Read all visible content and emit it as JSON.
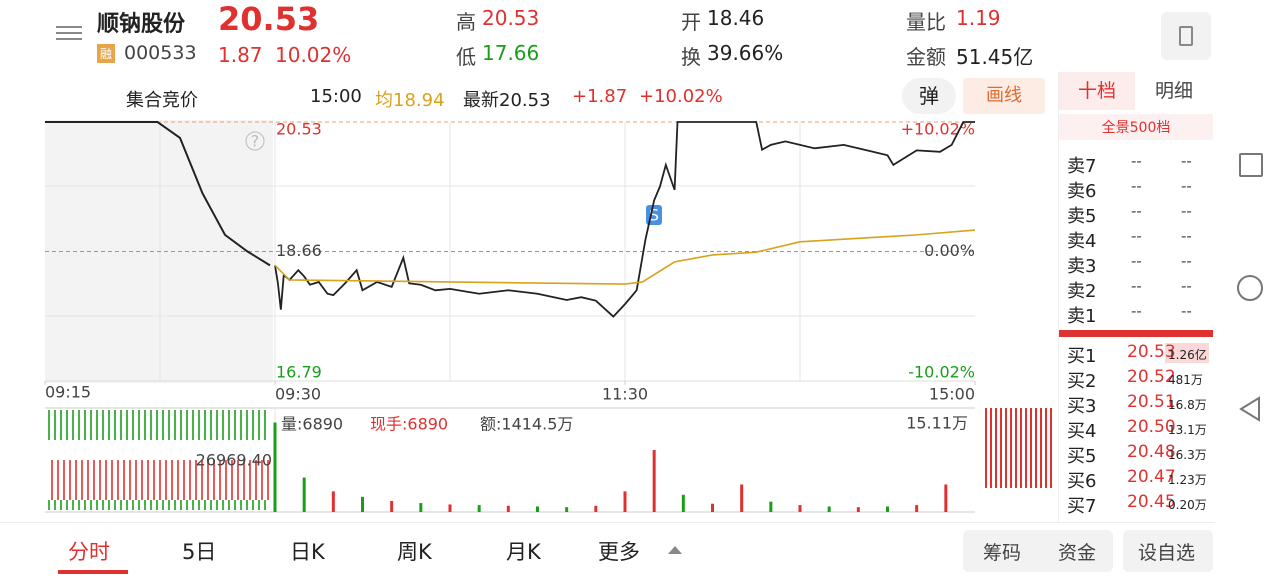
{
  "header": {
    "name": "顺钠股份",
    "price": "20.53",
    "badge": "融",
    "code": "000533",
    "change": "1.87",
    "change_pct": "10.02%",
    "stats": [
      {
        "label": "高",
        "value": "20.53",
        "color": "#e03131"
      },
      {
        "label": "低",
        "value": "17.66",
        "color": "#1a9e1a"
      },
      {
        "label": "开",
        "value": "18.46",
        "color": "#222222"
      },
      {
        "label": "换",
        "value": "39.66%",
        "color": "#222222"
      },
      {
        "label": "量比",
        "value": "1.19",
        "color": "#e03131"
      },
      {
        "label": "金额",
        "value": "51.45亿",
        "color": "#222222"
      }
    ]
  },
  "info_bar": {
    "auction": "集合竞价",
    "time": "15:00",
    "avg": "均18.94",
    "latest": "最新20.53",
    "change": "+1.87",
    "change_pct": "+10.02%",
    "pop_button": "弹",
    "draw_button": "画线"
  },
  "chart_data": {
    "type": "line",
    "ylim": [
      16.79,
      20.53
    ],
    "yticks": [
      16.79,
      18.66,
      20.53
    ],
    "pct_ticks": [
      "-10.02%",
      "0.00%",
      "+10.02%"
    ],
    "xlim": [
      0,
      240
    ],
    "xticks": [
      {
        "value": 0,
        "label": "09:30"
      },
      {
        "value": 120,
        "label": "11:30"
      },
      {
        "value": 240,
        "label": "15:00"
      }
    ],
    "series": [
      {
        "color": "#222222",
        "x": [
          0,
          1,
          2,
          3,
          5,
          8,
          10,
          12,
          15,
          18,
          20,
          24,
          28,
          30,
          35,
          40,
          44,
          46,
          50,
          55,
          60,
          70,
          80,
          90,
          100,
          105,
          110,
          116,
          120,
          124,
          127,
          130,
          132,
          134,
          137,
          138,
          150,
          165,
          167,
          170,
          175,
          185,
          195,
          205,
          210,
          212,
          220,
          228,
          232,
          236,
          240
        ],
        "values": [
          18.46,
          18.2,
          17.82,
          18.32,
          18.25,
          18.39,
          18.3,
          18.18,
          18.22,
          18.05,
          18.03,
          18.2,
          18.39,
          18.1,
          18.22,
          18.15,
          18.57,
          18.2,
          18.18,
          18.1,
          18.12,
          18.05,
          18.1,
          18.05,
          17.96,
          18.0,
          17.95,
          17.72,
          17.9,
          18.1,
          18.83,
          19.4,
          19.6,
          19.91,
          19.55,
          20.53,
          20.53,
          20.53,
          20.13,
          20.2,
          20.25,
          20.15,
          20.2,
          20.1,
          20.05,
          19.91,
          20.12,
          20.1,
          20.2,
          20.53,
          20.53
        ]
      },
      {
        "color": "#d9a21b",
        "x": [
          0,
          5,
          60,
          120,
          126,
          137,
          150,
          165,
          180,
          220,
          240
        ],
        "values": [
          18.46,
          18.25,
          18.22,
          18.19,
          18.22,
          18.51,
          18.61,
          18.65,
          18.8,
          18.9,
          18.97
        ]
      }
    ],
    "auction": {
      "xlim": [
        0,
        10
      ],
      "xticks": [
        {
          "value": 0,
          "label": "09:15"
        }
      ],
      "color": "#222222",
      "x": [
        0,
        5,
        6,
        7,
        8,
        9,
        10
      ],
      "values": [
        20.53,
        20.53,
        20.3,
        19.5,
        18.9,
        18.66,
        18.46
      ]
    },
    "volume": {
      "ylim": [
        0,
        15.11
      ],
      "yticks": [
        {
          "value": 15.11,
          "label": "15.11万"
        }
      ],
      "auction_label": "26969.40",
      "readout": {
        "vol": "量:6890",
        "hand": "现手:6890",
        "amount": "额:1414.5万"
      },
      "x": [
        0,
        10,
        20,
        30,
        40,
        50,
        60,
        70,
        80,
        90,
        100,
        110,
        120,
        130,
        140,
        150,
        160,
        170,
        180,
        190,
        200,
        210,
        220,
        230
      ],
      "values": [
        13,
        5,
        3,
        2.2,
        1.6,
        1.3,
        1.1,
        1,
        0.9,
        0.8,
        0.7,
        0.9,
        3,
        9,
        2.5,
        1.2,
        4,
        1.5,
        1,
        0.8,
        0.7,
        0.8,
        1,
        4
      ],
      "colors": [
        "#1a9e1a",
        "#1a9e1a",
        "#e03131",
        "#1a9e1a",
        "#e03131",
        "#1a9e1a",
        "#e03131",
        "#1a9e1a",
        "#e03131",
        "#1a9e1a",
        "#1a9e1a",
        "#e03131",
        "#e03131",
        "#e03131",
        "#1a9e1a",
        "#e03131",
        "#e03131",
        "#1a9e1a",
        "#e03131",
        "#1a9e1a",
        "#e03131",
        "#1a9e1a",
        "#e03131",
        "#e03131"
      ]
    }
  },
  "order_book": {
    "tabs": [
      "十档",
      "明细"
    ],
    "panorama": "全景500档",
    "asks": [
      {
        "label": "卖7",
        "price": "--",
        "volume": "--"
      },
      {
        "label": "卖6",
        "price": "--",
        "volume": "--"
      },
      {
        "label": "卖5",
        "price": "--",
        "volume": "--"
      },
      {
        "label": "卖4",
        "price": "--",
        "volume": "--"
      },
      {
        "label": "卖3",
        "price": "--",
        "volume": "--"
      },
      {
        "label": "卖2",
        "price": "--",
        "volume": "--"
      },
      {
        "label": "卖1",
        "price": "--",
        "volume": "--"
      }
    ],
    "bids": [
      {
        "label": "买1",
        "price": "20.53",
        "volume": "1.26亿"
      },
      {
        "label": "买2",
        "price": "20.52",
        "volume": "481万"
      },
      {
        "label": "买3",
        "price": "20.51",
        "volume": "16.8万"
      },
      {
        "label": "买4",
        "price": "20.50",
        "volume": "13.1万"
      },
      {
        "label": "买5",
        "price": "20.48",
        "volume": "16.3万"
      },
      {
        "label": "买6",
        "price": "20.47",
        "volume": "1.23万"
      },
      {
        "label": "买7",
        "price": "20.45",
        "volume": "0.20万"
      }
    ]
  },
  "tabs": [
    "分时",
    "5日",
    "日K",
    "周K",
    "月K",
    "更多"
  ],
  "actions": [
    "筹码",
    "资金",
    "设自选"
  ]
}
